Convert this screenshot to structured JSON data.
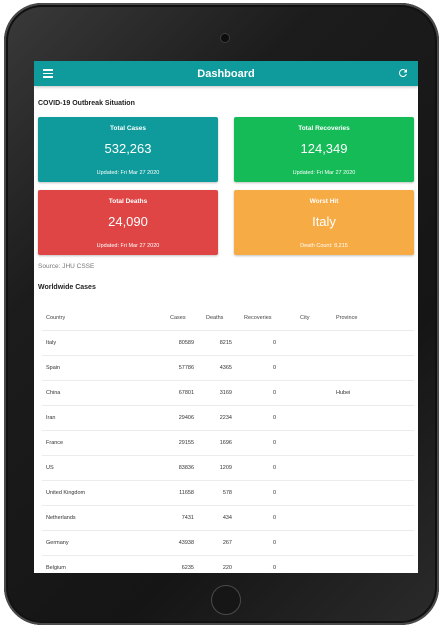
{
  "appbar": {
    "title": "Dashboard",
    "menu_icon": "menu-icon",
    "refresh_icon": "refresh-icon"
  },
  "outbreak": {
    "heading": "COVID-19 Outbreak Situation",
    "cards": {
      "total_cases": {
        "title": "Total Cases",
        "value": "532,263",
        "sub": "Updated: Fri Mar 27 2020",
        "color": "#0f9b9b"
      },
      "total_recoveries": {
        "title": "Total Recoveries",
        "value": "124,349",
        "sub": "Updated: Fri Mar 27 2020",
        "color": "#14bb57"
      },
      "total_deaths": {
        "title": "Total Deaths",
        "value": "24,090",
        "sub": "Updated: Fri Mar 27 2020",
        "color": "#df4545"
      },
      "worst_hit": {
        "title": "Worst Hit",
        "value": "Italy",
        "sub": "Death Count: 8,215",
        "color": "#f7ab44"
      }
    },
    "source": "Source: JHU CSSE"
  },
  "worldwide": {
    "heading": "Worldwide Cases",
    "columns": [
      "Country",
      "Cases",
      "Deaths",
      "Recoveries",
      "City",
      "Province"
    ],
    "rows": [
      {
        "country": "Italy",
        "cases": "80589",
        "deaths": "8215",
        "recoveries": "0",
        "city": "",
        "province": ""
      },
      {
        "country": "Spain",
        "cases": "57786",
        "deaths": "4365",
        "recoveries": "0",
        "city": "",
        "province": ""
      },
      {
        "country": "China",
        "cases": "67801",
        "deaths": "3169",
        "recoveries": "0",
        "city": "",
        "province": "Hubei"
      },
      {
        "country": "Iran",
        "cases": "29406",
        "deaths": "2234",
        "recoveries": "0",
        "city": "",
        "province": ""
      },
      {
        "country": "France",
        "cases": "29155",
        "deaths": "1696",
        "recoveries": "0",
        "city": "",
        "province": ""
      },
      {
        "country": "US",
        "cases": "83836",
        "deaths": "1209",
        "recoveries": "0",
        "city": "",
        "province": ""
      },
      {
        "country": "United Kingdom",
        "cases": "11658",
        "deaths": "578",
        "recoveries": "0",
        "city": "",
        "province": ""
      },
      {
        "country": "Netherlands",
        "cases": "7431",
        "deaths": "434",
        "recoveries": "0",
        "city": "",
        "province": ""
      },
      {
        "country": "Germany",
        "cases": "43938",
        "deaths": "267",
        "recoveries": "0",
        "city": "",
        "province": ""
      },
      {
        "country": "Belgium",
        "cases": "6235",
        "deaths": "220",
        "recoveries": "0",
        "city": "",
        "province": ""
      }
    ]
  },
  "device": {
    "camera": "camera-icon",
    "home_button": "home-button-icon"
  }
}
